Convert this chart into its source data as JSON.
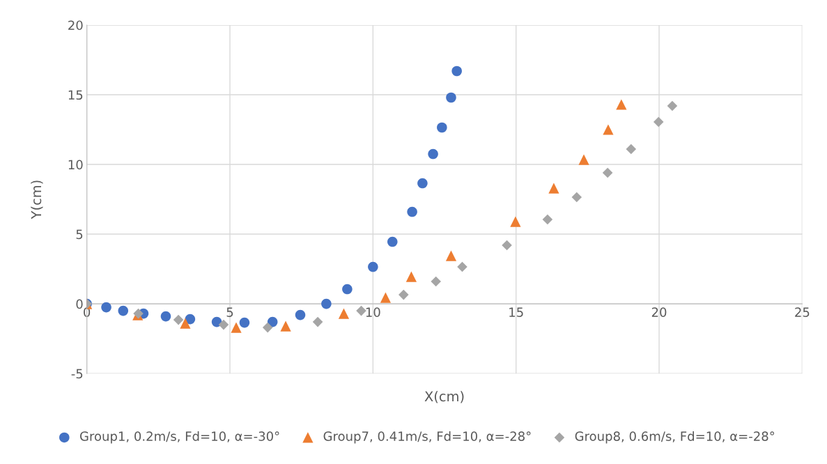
{
  "chart_data": {
    "type": "scatter",
    "xlabel": "X(cm)",
    "ylabel": "Y(cm)",
    "xlim": [
      0,
      25
    ],
    "ylim": [
      -5,
      20
    ],
    "xticks": [
      0,
      5,
      10,
      15,
      20,
      25
    ],
    "yticks": [
      -5,
      0,
      5,
      10,
      15,
      20
    ],
    "grid": true,
    "legend": "bottom",
    "series": [
      {
        "name": "Group1, 0.2m/s, Fd=10, α=-30°",
        "color": "#4472c4",
        "marker": "circle",
        "x": [
          0,
          0.68,
          1.27,
          1.98,
          2.76,
          3.61,
          4.54,
          5.51,
          6.49,
          7.46,
          8.37,
          9.1,
          10.0,
          10.68,
          11.37,
          11.73,
          12.1,
          12.41,
          12.73,
          12.93
        ],
        "values": [
          0,
          -0.25,
          -0.5,
          -0.7,
          -0.9,
          -1.1,
          -1.3,
          -1.35,
          -1.3,
          -0.8,
          0,
          1.05,
          2.65,
          4.45,
          6.6,
          8.65,
          10.75,
          12.65,
          14.8,
          16.7
        ]
      },
      {
        "name": "Group7, 0.41m/s, Fd=10, α=-28°",
        "color": "#ed7d31",
        "marker": "triangle",
        "x": [
          0,
          1.78,
          3.44,
          5.22,
          6.95,
          8.98,
          10.44,
          11.34,
          12.73,
          14.98,
          16.32,
          17.37,
          18.22,
          18.68
        ],
        "values": [
          0,
          -0.8,
          -1.4,
          -1.7,
          -1.6,
          -0.7,
          0.45,
          1.95,
          3.45,
          5.9,
          8.3,
          10.35,
          12.5,
          14.3
        ]
      },
      {
        "name": "Group8, 0.6m/s, Fd=10, α=-28°",
        "color": "#a5a5a5",
        "marker": "diamond",
        "x": [
          0,
          1.8,
          3.2,
          4.78,
          6.32,
          8.07,
          9.59,
          11.07,
          12.2,
          13.12,
          14.68,
          16.1,
          17.12,
          18.2,
          19.02,
          19.98,
          20.46
        ],
        "values": [
          0,
          -0.7,
          -1.15,
          -1.5,
          -1.7,
          -1.3,
          -0.5,
          0.65,
          1.6,
          2.65,
          4.2,
          6.05,
          7.65,
          9.4,
          11.1,
          13.05,
          14.2
        ]
      }
    ]
  }
}
